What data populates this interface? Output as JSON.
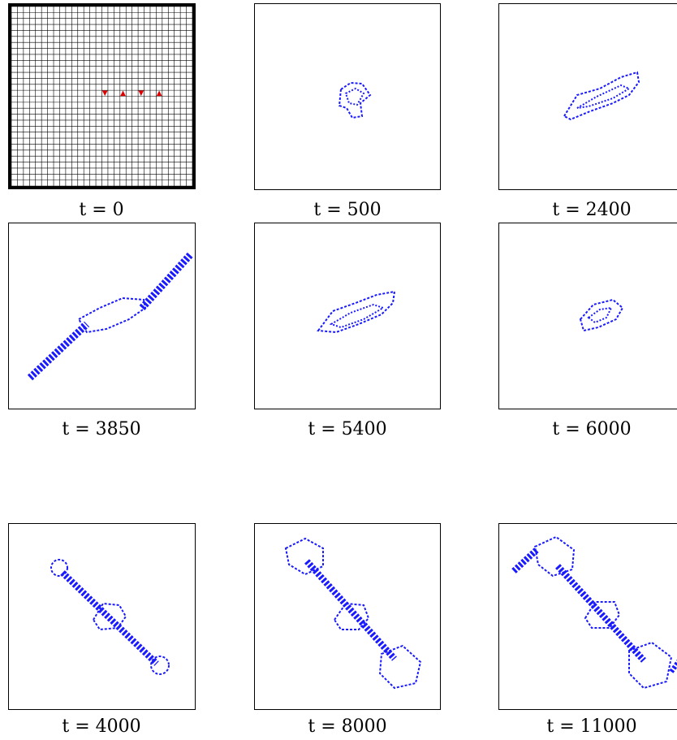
{
  "panels": [
    {
      "label": "t = 0",
      "time": 0,
      "kind": "grid",
      "grid_cells": 30,
      "markers": [
        {
          "col": 15,
          "row": 14,
          "dir": "down"
        },
        {
          "col": 18,
          "row": 14,
          "dir": "up"
        },
        {
          "col": 21,
          "row": 14,
          "dir": "down"
        },
        {
          "col": 24,
          "row": 14,
          "dir": "up"
        }
      ]
    },
    {
      "label": "t = 500",
      "time": 500,
      "kind": "blob"
    },
    {
      "label": "t = 2400",
      "time": 2400,
      "kind": "blob"
    },
    {
      "label": "t = 3850",
      "time": 3850,
      "kind": "blob"
    },
    {
      "label": "t = 5400",
      "time": 5400,
      "kind": "blob"
    },
    {
      "label": "t = 6000",
      "time": 6000,
      "kind": "blob"
    },
    {
      "label": "t = 4000",
      "time": 4000,
      "kind": "blob"
    },
    {
      "label": "t = 8000",
      "time": 8000,
      "kind": "blob"
    },
    {
      "label": "t = 11000",
      "time": 11000,
      "kind": "blob"
    }
  ],
  "colors": {
    "grid": "#000000",
    "marker": "#e00000",
    "pattern": "#1a1aff"
  }
}
